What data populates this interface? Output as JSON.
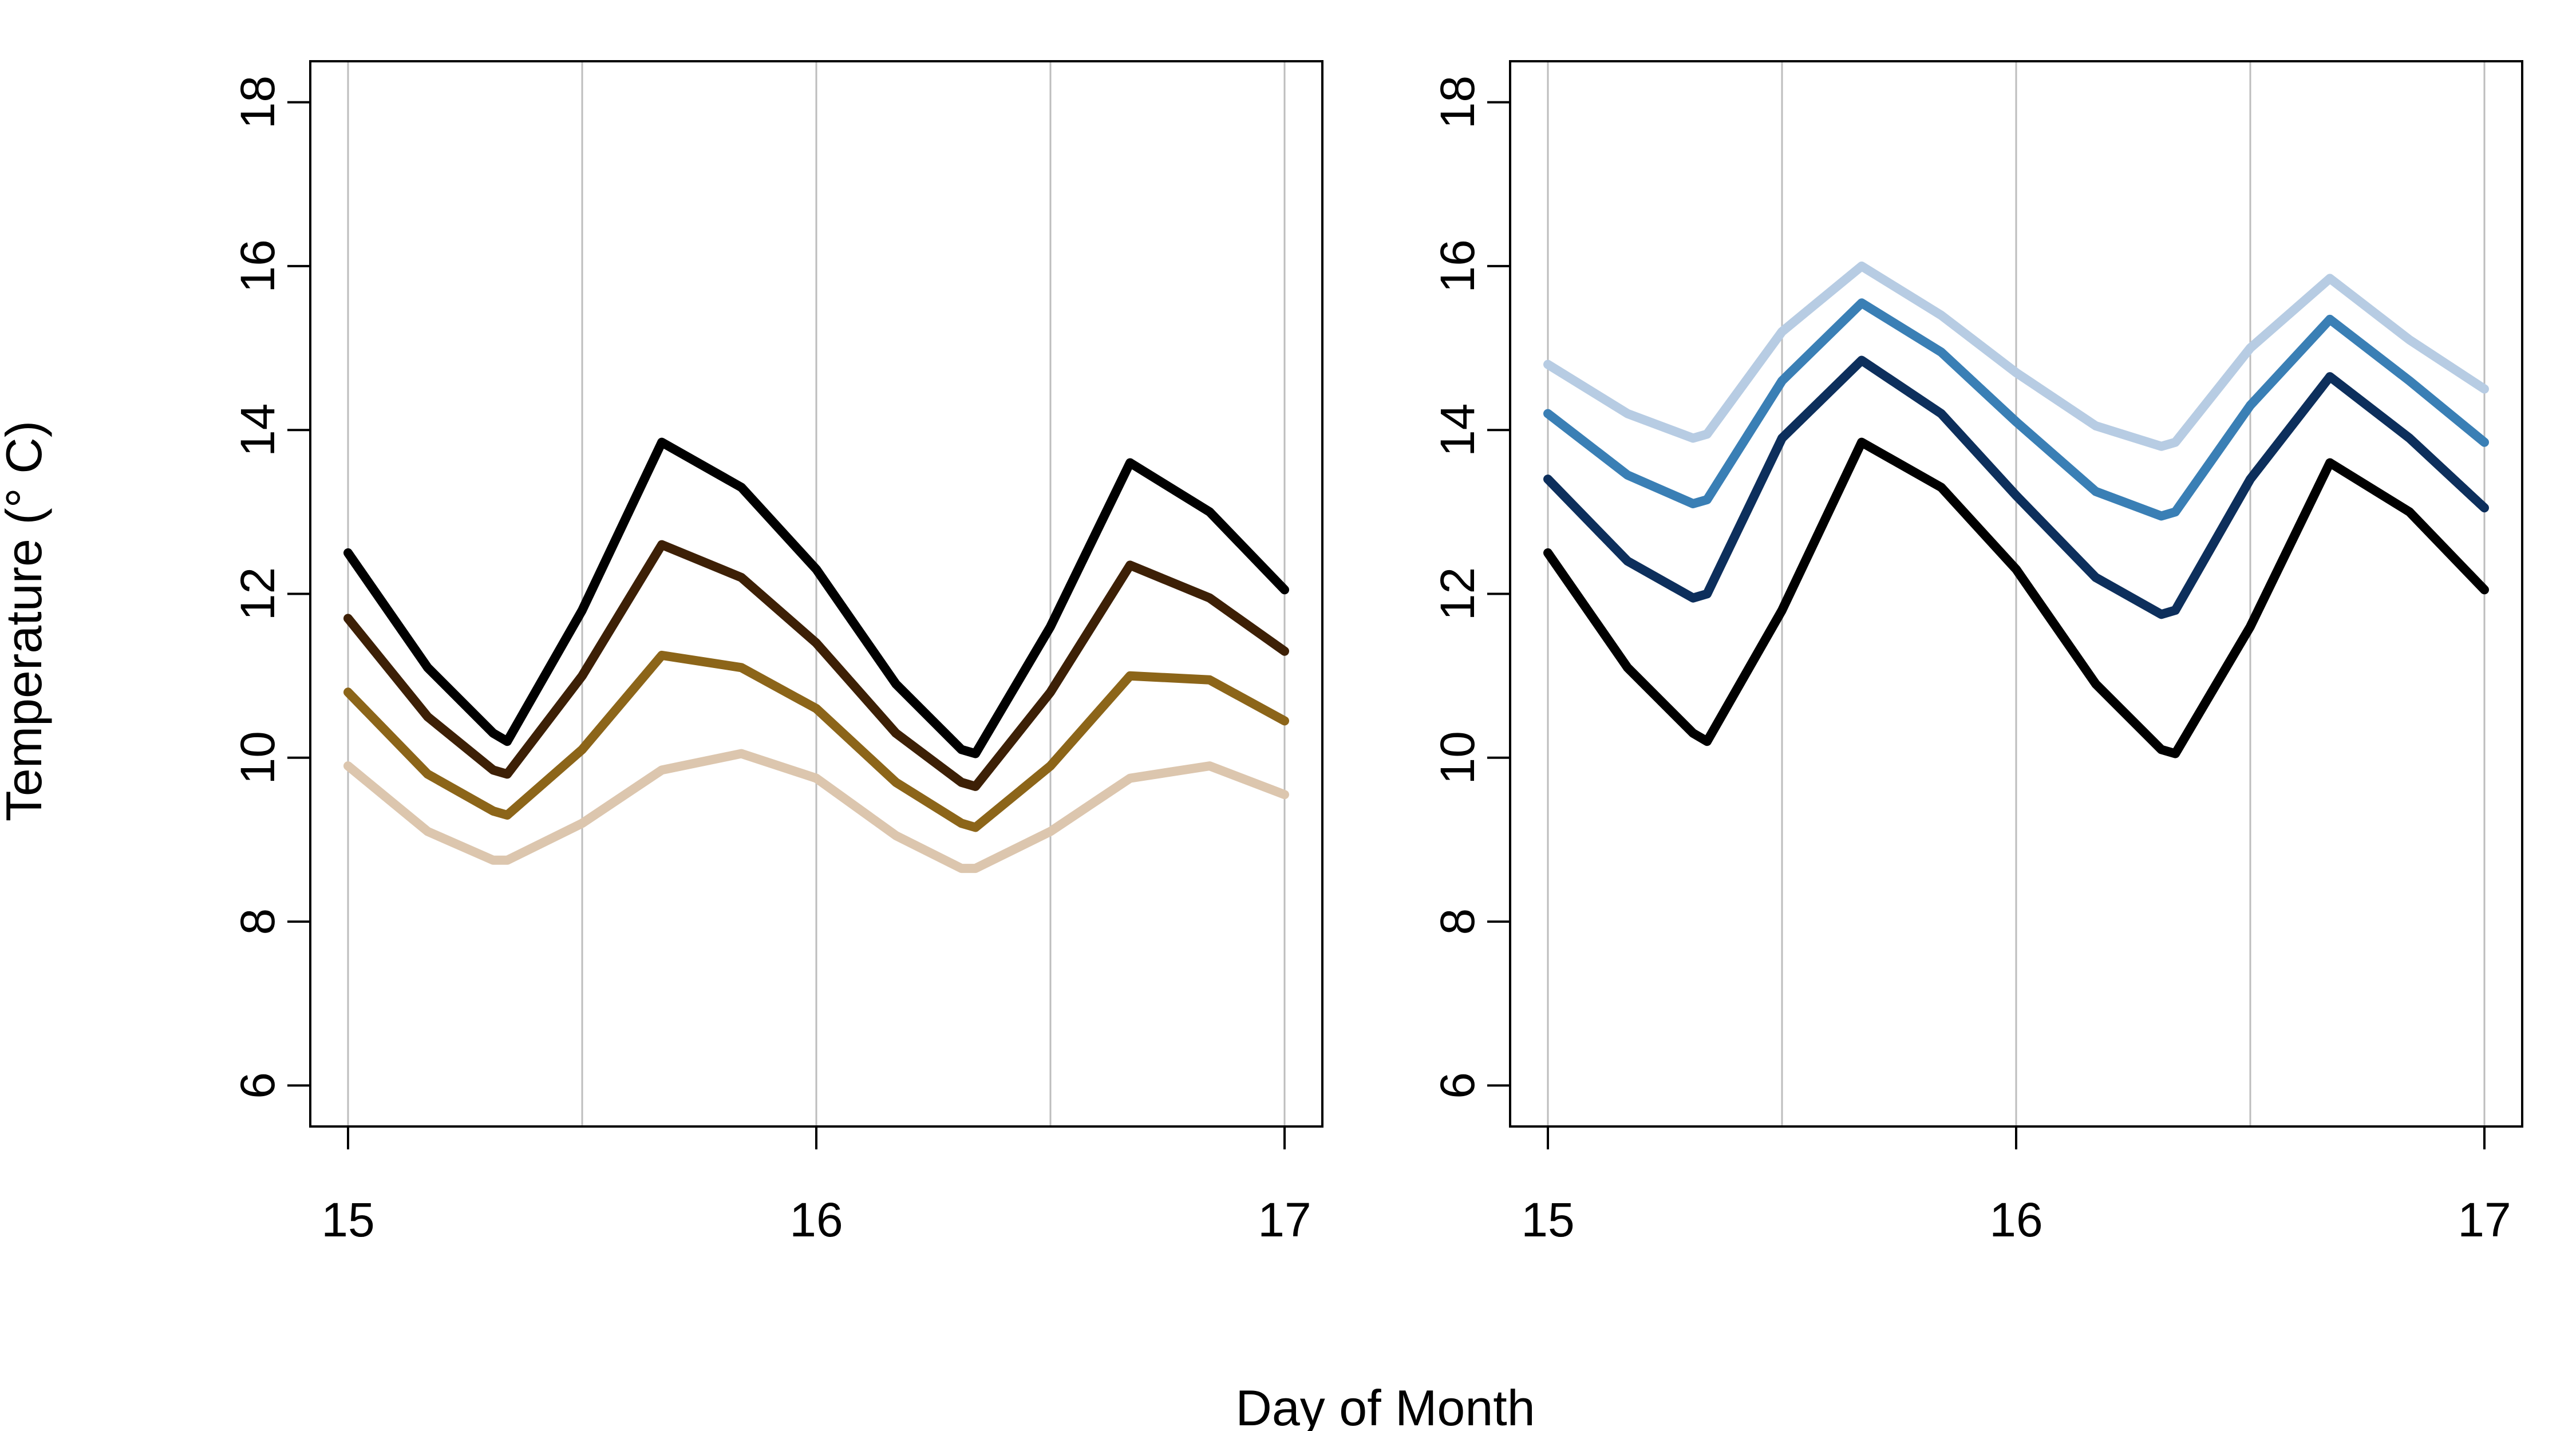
{
  "chart_data": {
    "type": "line",
    "xlabel": "Day of Month",
    "ylabel": "Temperature (° C)",
    "xlim": [
      15,
      17
    ],
    "ylim": [
      6,
      18
    ],
    "xticks": [
      "15",
      "16",
      "17"
    ],
    "yticks": [
      "6",
      "8",
      "10",
      "12",
      "14",
      "16",
      "18"
    ],
    "x_gridlines": [
      15,
      15.5,
      16,
      16.5,
      17
    ],
    "panels": [
      {
        "x": [
          15,
          15.17,
          15.31,
          15.34,
          15.5,
          15.67,
          15.84,
          16.0,
          16.17,
          16.31,
          16.34,
          16.5,
          16.67,
          16.84,
          17.0
        ],
        "series": [
          {
            "color": "#000000",
            "values": [
              12.5,
              11.1,
              10.3,
              10.2,
              11.8,
              13.85,
              13.3,
              12.3,
              10.9,
              10.1,
              10.05,
              11.6,
              13.6,
              13.0,
              12.05
            ]
          },
          {
            "color": "#3d2006",
            "values": [
              11.7,
              10.5,
              9.85,
              9.8,
              11.0,
              12.6,
              12.2,
              11.4,
              10.3,
              9.7,
              9.65,
              10.8,
              12.35,
              11.95,
              11.3
            ]
          },
          {
            "color": "#8c6519",
            "values": [
              10.8,
              9.8,
              9.35,
              9.3,
              10.1,
              11.25,
              11.1,
              10.6,
              9.7,
              9.2,
              9.15,
              9.9,
              11.0,
              10.95,
              10.45
            ]
          },
          {
            "color": "#dcc6ae",
            "values": [
              9.9,
              9.1,
              8.75,
              8.75,
              9.2,
              9.85,
              10.05,
              9.75,
              9.05,
              8.65,
              8.65,
              9.1,
              9.75,
              9.9,
              9.55
            ]
          }
        ]
      },
      {
        "x": [
          15,
          15.17,
          15.31,
          15.34,
          15.5,
          15.67,
          15.84,
          16.0,
          16.17,
          16.31,
          16.34,
          16.5,
          16.67,
          16.84,
          17.0
        ],
        "series": [
          {
            "color": "#b7cce3",
            "values": [
              14.8,
              14.2,
              13.9,
              13.95,
              15.2,
              16.0,
              15.4,
              14.7,
              14.05,
              13.8,
              13.85,
              15.0,
              15.85,
              15.1,
              14.5
            ]
          },
          {
            "color": "#3a7fb5",
            "values": [
              14.2,
              13.45,
              13.1,
              13.15,
              14.6,
              15.55,
              14.95,
              14.1,
              13.25,
              12.95,
              13.0,
              14.3,
              15.35,
              14.6,
              13.85
            ]
          },
          {
            "color": "#0d2f5c",
            "values": [
              13.4,
              12.4,
              11.95,
              12.0,
              13.9,
              14.85,
              14.2,
              13.2,
              12.2,
              11.75,
              11.8,
              13.4,
              14.65,
              13.9,
              13.05
            ]
          },
          {
            "color": "#000000",
            "values": [
              12.5,
              11.1,
              10.3,
              10.2,
              11.8,
              13.85,
              13.3,
              12.3,
              10.9,
              10.1,
              10.05,
              11.6,
              13.6,
              13.0,
              12.05
            ]
          }
        ]
      }
    ]
  }
}
